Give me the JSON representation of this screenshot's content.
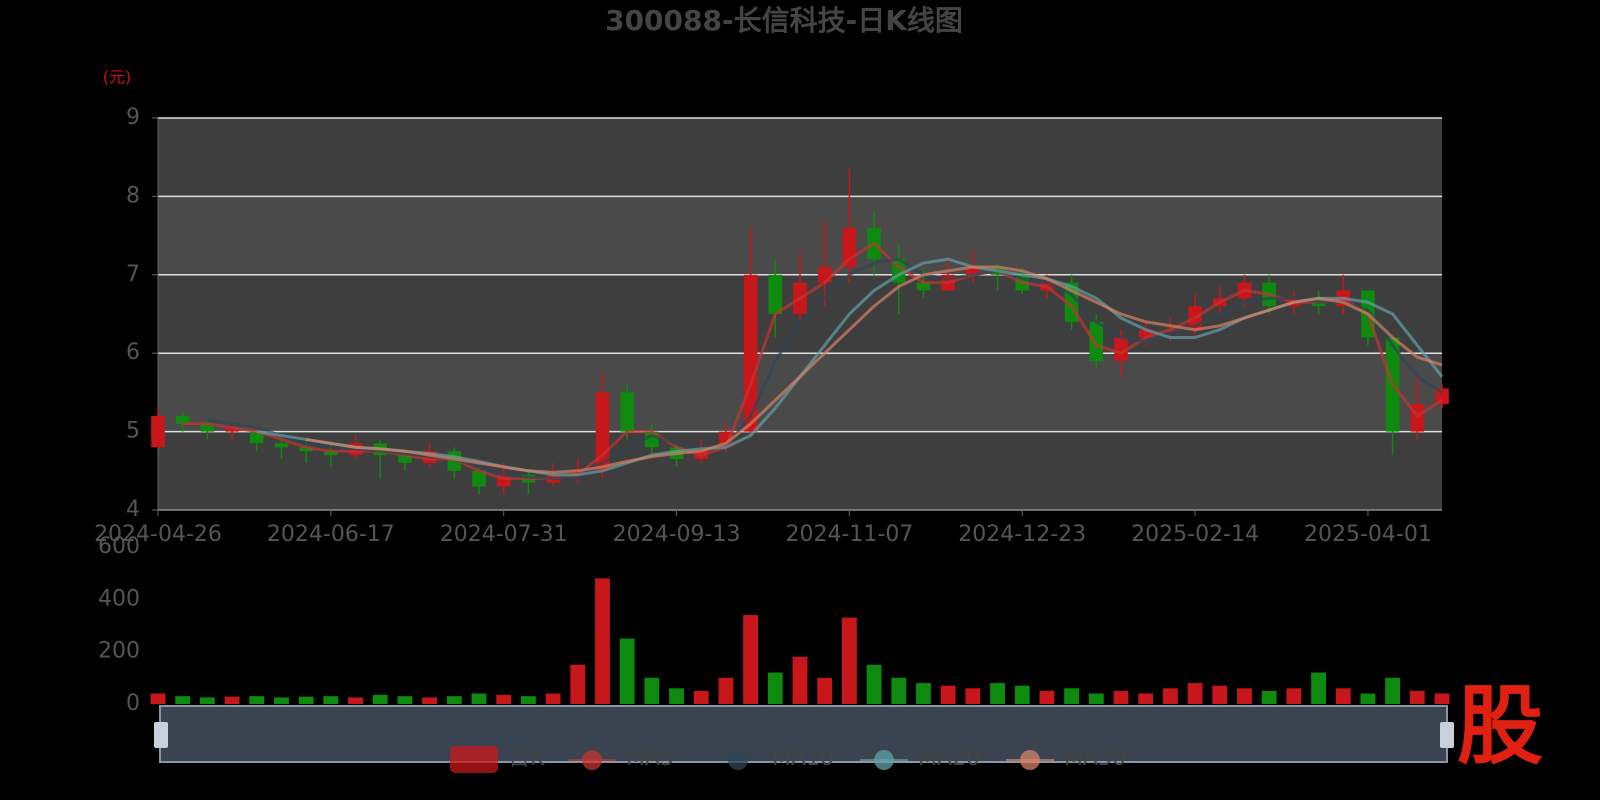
{
  "chart_data": {
    "type": "candlestick",
    "title": "300088-长信科技-日K线图",
    "y_unit": "(元)",
    "watermark": "股",
    "categories": [
      "2024-04-26",
      null,
      null,
      null,
      null,
      null,
      null,
      "2024-06-17",
      null,
      null,
      null,
      null,
      null,
      null,
      "2024-07-31",
      null,
      null,
      null,
      null,
      null,
      null,
      "2024-09-13",
      null,
      null,
      null,
      null,
      null,
      null,
      "2024-11-07",
      null,
      null,
      null,
      null,
      null,
      null,
      "2024-12-23",
      null,
      null,
      null,
      null,
      null,
      null,
      "2025-02-14",
      null,
      null,
      null,
      null,
      null,
      null,
      "2025-04-01",
      null,
      null,
      null
    ],
    "ylim": [
      4,
      9
    ],
    "yticks": [
      4,
      5,
      6,
      7,
      8,
      9
    ],
    "grid": true,
    "up_color": "#c8171b",
    "down_color": "#0e8a0e",
    "candle_name": "日K",
    "ohlc": [
      [
        4.8,
        5.2,
        4.8,
        5.3
      ],
      [
        5.2,
        5.1,
        5.0,
        5.25
      ],
      [
        5.1,
        5.0,
        4.9,
        5.15
      ],
      [
        5.0,
        5.05,
        4.9,
        5.1
      ],
      [
        5.0,
        4.85,
        4.75,
        5.0
      ],
      [
        4.85,
        4.8,
        4.65,
        4.95
      ],
      [
        4.8,
        4.75,
        4.6,
        4.9
      ],
      [
        4.75,
        4.7,
        4.55,
        4.85
      ],
      [
        4.7,
        4.85,
        4.65,
        4.95
      ],
      [
        4.85,
        4.7,
        4.4,
        4.9
      ],
      [
        4.7,
        4.6,
        4.5,
        4.75
      ],
      [
        4.6,
        4.75,
        4.55,
        4.85
      ],
      [
        4.75,
        4.5,
        4.4,
        4.8
      ],
      [
        4.5,
        4.3,
        4.2,
        4.55
      ],
      [
        4.3,
        4.45,
        4.2,
        4.6
      ],
      [
        4.45,
        4.35,
        4.2,
        4.5
      ],
      [
        4.35,
        4.45,
        4.3,
        4.6
      ],
      [
        4.45,
        4.5,
        4.35,
        4.65
      ],
      [
        4.5,
        5.5,
        4.4,
        5.75
      ],
      [
        5.5,
        5.0,
        4.9,
        5.6
      ],
      [
        5.0,
        4.8,
        4.7,
        5.1
      ],
      [
        4.8,
        4.65,
        4.55,
        4.85
      ],
      [
        4.65,
        4.8,
        4.6,
        4.9
      ],
      [
        4.8,
        5.0,
        4.75,
        5.1
      ],
      [
        5.0,
        7.0,
        4.95,
        7.6
      ],
      [
        7.0,
        6.5,
        6.2,
        7.2
      ],
      [
        6.5,
        6.9,
        6.4,
        7.3
      ],
      [
        6.9,
        7.1,
        6.6,
        7.7
      ],
      [
        7.1,
        7.6,
        6.9,
        8.35
      ],
      [
        7.6,
        7.2,
        7.0,
        7.8
      ],
      [
        7.2,
        6.9,
        6.5,
        7.4
      ],
      [
        6.9,
        6.8,
        6.7,
        7.1
      ],
      [
        6.8,
        7.0,
        6.8,
        7.2
      ],
      [
        7.0,
        7.1,
        6.9,
        7.3
      ],
      [
        7.1,
        7.0,
        6.8,
        7.15
      ],
      [
        7.0,
        6.8,
        6.75,
        7.1
      ],
      [
        6.8,
        6.9,
        6.7,
        7.0
      ],
      [
        6.9,
        6.4,
        6.3,
        7.0
      ],
      [
        6.4,
        5.9,
        5.8,
        6.5
      ],
      [
        5.9,
        6.2,
        5.7,
        6.3
      ],
      [
        6.2,
        6.3,
        6.1,
        6.4
      ],
      [
        6.3,
        6.3,
        6.15,
        6.45
      ],
      [
        6.3,
        6.6,
        6.2,
        6.75
      ],
      [
        6.6,
        6.7,
        6.5,
        6.85
      ],
      [
        6.7,
        6.9,
        6.6,
        7.0
      ],
      [
        6.9,
        6.6,
        6.5,
        7.0
      ],
      [
        6.6,
        6.7,
        6.5,
        6.8
      ],
      [
        6.7,
        6.6,
        6.5,
        6.8
      ],
      [
        6.6,
        6.8,
        6.5,
        7.0
      ],
      [
        6.8,
        6.2,
        6.1,
        6.8
      ],
      [
        6.2,
        5.0,
        4.7,
        6.2
      ],
      [
        5.0,
        5.35,
        4.9,
        5.7
      ],
      [
        5.35,
        5.55,
        5.3,
        5.6
      ]
    ],
    "series": [
      {
        "name": "MA5",
        "color": "#c23531",
        "values": [
          null,
          5.1,
          5.1,
          5.05,
          5.0,
          4.9,
          4.8,
          4.75,
          4.75,
          4.75,
          4.7,
          4.65,
          4.65,
          4.5,
          4.4,
          4.4,
          4.4,
          4.45,
          4.7,
          5.0,
          5.0,
          4.8,
          4.7,
          4.8,
          5.6,
          6.5,
          6.7,
          6.9,
          7.2,
          7.4,
          7.1,
          6.9,
          6.9,
          7.0,
          7.05,
          6.9,
          6.85,
          6.6,
          6.1,
          6.0,
          6.2,
          6.3,
          6.45,
          6.65,
          6.8,
          6.75,
          6.65,
          6.65,
          6.7,
          6.5,
          5.6,
          5.2,
          5.4
        ]
      },
      {
        "name": "MA10",
        "color": "#2f4554",
        "values": [
          null,
          null,
          5.15,
          5.1,
          5.05,
          4.95,
          4.85,
          4.8,
          4.78,
          4.75,
          4.72,
          4.68,
          4.65,
          4.55,
          4.45,
          4.42,
          4.4,
          4.42,
          4.6,
          4.8,
          4.95,
          4.85,
          4.78,
          4.8,
          5.2,
          5.9,
          6.4,
          6.7,
          7.0,
          7.15,
          7.2,
          7.0,
          6.95,
          7.0,
          7.05,
          6.95,
          6.9,
          6.75,
          6.4,
          6.2,
          6.15,
          6.25,
          6.35,
          6.5,
          6.65,
          6.7,
          6.7,
          6.65,
          6.65,
          6.55,
          6.1,
          5.7,
          5.5
        ]
      },
      {
        "name": "MA20",
        "color": "#61a0a8",
        "values": [
          null,
          null,
          null,
          null,
          5.0,
          4.95,
          4.9,
          4.85,
          4.8,
          4.78,
          4.75,
          4.72,
          4.68,
          4.62,
          4.55,
          4.5,
          4.45,
          4.45,
          4.5,
          4.6,
          4.7,
          4.75,
          4.78,
          4.8,
          4.95,
          5.3,
          5.7,
          6.1,
          6.5,
          6.8,
          7.0,
          7.15,
          7.2,
          7.1,
          7.05,
          7.0,
          6.95,
          6.85,
          6.7,
          6.45,
          6.3,
          6.2,
          6.2,
          6.3,
          6.45,
          6.55,
          6.65,
          6.7,
          6.7,
          6.65,
          6.5,
          6.1,
          5.7
        ]
      },
      {
        "name": "MA30",
        "color": "#d48265",
        "values": [
          null,
          null,
          null,
          null,
          null,
          null,
          4.9,
          4.85,
          4.8,
          4.78,
          4.75,
          4.7,
          4.65,
          4.6,
          4.55,
          4.5,
          4.48,
          4.5,
          4.55,
          4.62,
          4.68,
          4.72,
          4.75,
          4.85,
          5.1,
          5.4,
          5.7,
          6.0,
          6.3,
          6.6,
          6.85,
          7.0,
          7.05,
          7.1,
          7.1,
          7.05,
          6.95,
          6.8,
          6.65,
          6.5,
          6.4,
          6.35,
          6.3,
          6.35,
          6.45,
          6.55,
          6.65,
          6.7,
          6.65,
          6.5,
          6.2,
          5.95,
          5.85
        ]
      }
    ],
    "volume": {
      "ylim": [
        0,
        600
      ],
      "yticks": [
        0,
        200,
        400,
        600
      ],
      "values": [
        40,
        30,
        25,
        28,
        30,
        25,
        28,
        30,
        25,
        35,
        30,
        25,
        30,
        40,
        35,
        30,
        40,
        150,
        480,
        250,
        100,
        60,
        50,
        100,
        340,
        120,
        180,
        100,
        330,
        150,
        100,
        80,
        70,
        60,
        80,
        70,
        50,
        60,
        40,
        50,
        40,
        60,
        80,
        70,
        60,
        50,
        60,
        120,
        60,
        40,
        100,
        50,
        40
      ]
    }
  }
}
